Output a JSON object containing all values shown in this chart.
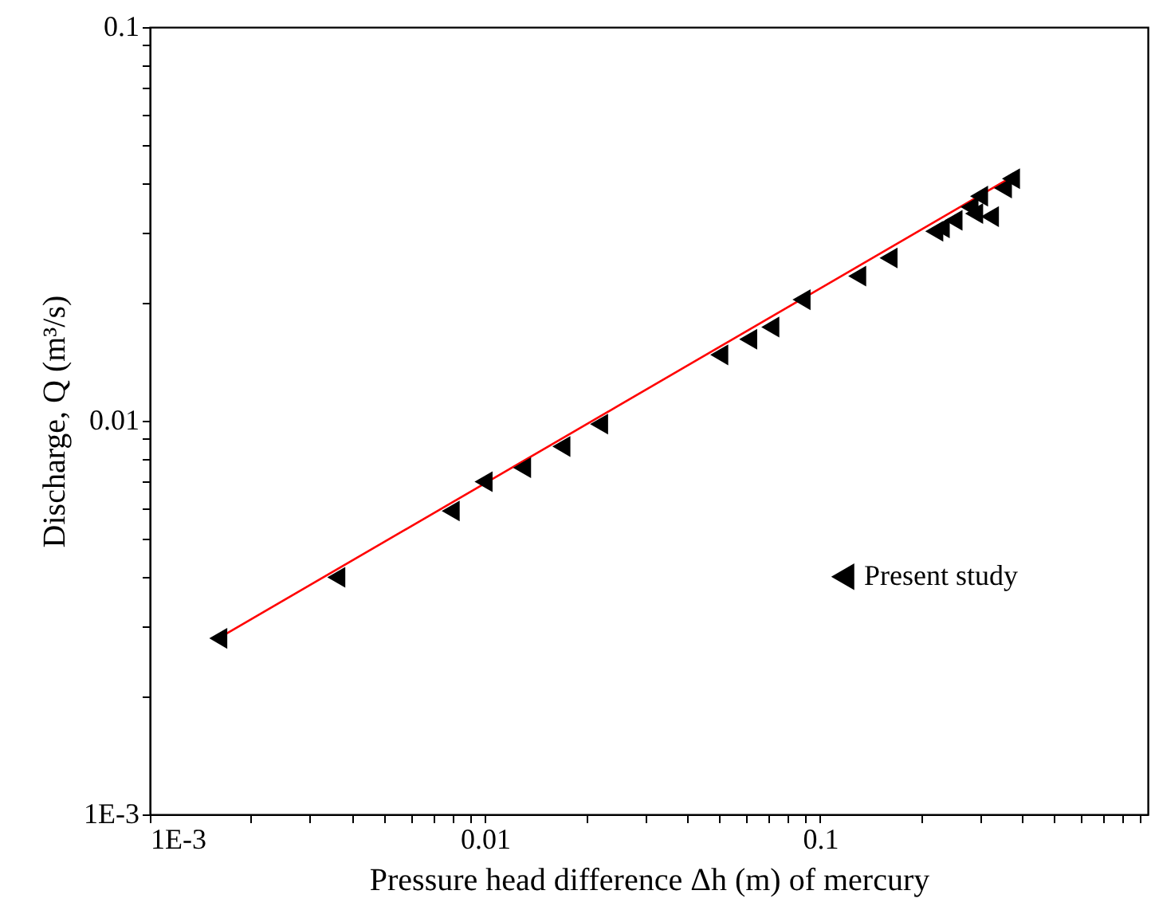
{
  "chart_data": {
    "type": "scatter",
    "xlabel": "Pressure head difference Δh (m) of mercury",
    "ylabel": "Discharge, Q (m³/s)",
    "log": "xy",
    "marker": "triangle",
    "legend": "right",
    "grid": false,
    "xlim": [
      0.001,
      0.95
    ],
    "ylim": [
      0.001,
      0.1
    ],
    "xticks": [
      {
        "value": 0.001,
        "label": "1E-3"
      },
      {
        "value": 0.002,
        "label": null
      },
      {
        "value": 0.003,
        "label": null
      },
      {
        "value": 0.004,
        "label": null
      },
      {
        "value": 0.005,
        "label": null
      },
      {
        "value": 0.006,
        "label": null
      },
      {
        "value": 0.007,
        "label": null
      },
      {
        "value": 0.008,
        "label": null
      },
      {
        "value": 0.009,
        "label": null
      },
      0.01,
      {
        "value": 0.02,
        "label": null
      },
      {
        "value": 0.03,
        "label": null
      },
      {
        "value": 0.04,
        "label": null
      },
      {
        "value": 0.05,
        "label": null
      },
      {
        "value": 0.06,
        "label": null
      },
      {
        "value": 0.07,
        "label": null
      },
      {
        "value": 0.08,
        "label": null
      },
      {
        "value": 0.09,
        "label": null
      },
      0.1,
      {
        "value": 0.2,
        "label": null
      },
      {
        "value": 0.3,
        "label": null
      },
      {
        "value": 0.4,
        "label": null
      },
      {
        "value": 0.5,
        "label": null
      },
      {
        "value": 0.6,
        "label": null
      },
      {
        "value": 0.7,
        "label": null
      },
      {
        "value": 0.8,
        "label": null
      },
      {
        "value": 0.9,
        "label": null
      }
    ],
    "yticks": [
      {
        "value": 0.001,
        "label": "1E-3"
      },
      {
        "value": 0.002,
        "label": null
      },
      {
        "value": 0.003,
        "label": null
      },
      {
        "value": 0.004,
        "label": null
      },
      {
        "value": 0.005,
        "label": null
      },
      {
        "value": 0.006,
        "label": null
      },
      {
        "value": 0.007,
        "label": null
      },
      {
        "value": 0.008,
        "label": null
      },
      {
        "value": 0.009,
        "label": null
      },
      0.01,
      {
        "value": 0.02,
        "label": null
      },
      {
        "value": 0.03,
        "label": null
      },
      {
        "value": 0.04,
        "label": null
      },
      {
        "value": 0.05,
        "label": null
      },
      {
        "value": 0.06,
        "label": null
      },
      {
        "value": 0.07,
        "label": null
      },
      {
        "value": 0.08,
        "label": null
      },
      {
        "value": 0.09,
        "label": null
      },
      0.1
    ],
    "series": [
      {
        "type": "line",
        "marker": "none",
        "line_style": "solid",
        "color": "#ff0000",
        "x": [
          0.0016,
          0.38
        ],
        "values": [
          0.0028,
          0.042
        ]
      },
      {
        "name": "Present study",
        "color": "#000000",
        "x": [
          0.0016,
          0.0036,
          0.0079,
          0.0099,
          0.0129,
          0.0169,
          0.0219,
          0.05,
          0.061,
          0.071,
          0.088,
          0.129,
          0.16,
          0.219,
          0.229,
          0.25,
          0.279,
          0.288,
          0.298,
          0.321,
          0.351,
          0.371
        ],
        "values": [
          0.0028,
          0.004,
          0.0059,
          0.007,
          0.0076,
          0.0086,
          0.0098,
          0.0147,
          0.0161,
          0.0173,
          0.0203,
          0.0233,
          0.0259,
          0.0303,
          0.0309,
          0.0323,
          0.0349,
          0.0336,
          0.0372,
          0.033,
          0.039,
          0.0412
        ]
      }
    ]
  }
}
